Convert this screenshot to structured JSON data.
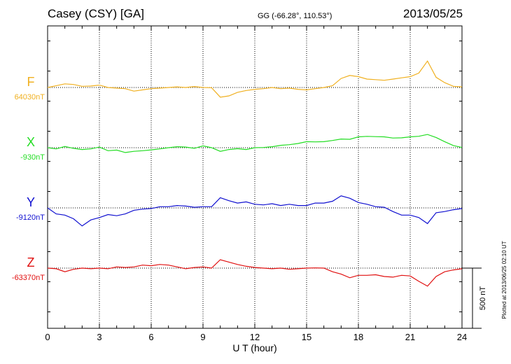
{
  "header": {
    "station": "Casey (CSY)  [GA]",
    "coords": "GG (-66.28°, 110.53°)",
    "date": "2013/05/25"
  },
  "plotted_note": "Plotted at 2013/06/25 02:10 UT",
  "scale_bar_label": "500 nT",
  "colors": {
    "F": "#f0b020",
    "X": "#22dd22",
    "Y": "#1010d0",
    "Z": "#e01010"
  },
  "chart_data": {
    "type": "line",
    "title": "Casey (CSY)  [GA]",
    "xlabel": "U T (hour)",
    "ylabel": "",
    "xlim": [
      0,
      24
    ],
    "x_ticks": [
      "0",
      "3",
      "6",
      "9",
      "12",
      "15",
      "18",
      "21",
      "24"
    ],
    "grid": true,
    "scale_nT": 500,
    "x": [
      0,
      0.5,
      1,
      1.5,
      2,
      2.5,
      3,
      3.5,
      4,
      4.5,
      5,
      5.5,
      6,
      6.5,
      7,
      7.5,
      8,
      8.5,
      9,
      9.5,
      10,
      10.5,
      11,
      11.5,
      12,
      12.5,
      13,
      13.5,
      14,
      14.5,
      15,
      15.5,
      16,
      16.5,
      17,
      17.5,
      18,
      18.5,
      19,
      19.5,
      20,
      20.5,
      21,
      21.5,
      22,
      22.5,
      23,
      23.5,
      24
    ],
    "series": [
      {
        "name": "F",
        "baseline_label": "64030nT",
        "values": [
          64030,
          64045,
          64060,
          64055,
          64040,
          64042,
          64050,
          64030,
          64025,
          64020,
          64000,
          64010,
          64020,
          64025,
          64030,
          64035,
          64030,
          64038,
          64030,
          64028,
          63950,
          63960,
          63990,
          64005,
          64015,
          64020,
          64030,
          64020,
          64025,
          64015,
          64010,
          64020,
          64030,
          64045,
          64105,
          64130,
          64120,
          64100,
          64095,
          64090,
          64100,
          64110,
          64120,
          64150,
          64250,
          64115,
          64070,
          64040,
          64035
        ]
      },
      {
        "name": "X",
        "baseline_label": "-930nT",
        "values": [
          -930,
          -940,
          -920,
          -935,
          -945,
          -940,
          -925,
          -955,
          -950,
          -970,
          -960,
          -955,
          -948,
          -940,
          -930,
          -922,
          -925,
          -935,
          -915,
          -930,
          -960,
          -945,
          -938,
          -945,
          -930,
          -928,
          -922,
          -910,
          -905,
          -895,
          -880,
          -882,
          -880,
          -870,
          -858,
          -860,
          -840,
          -836,
          -838,
          -840,
          -850,
          -848,
          -840,
          -835,
          -820,
          -845,
          -880,
          -912,
          -928
        ]
      },
      {
        "name": "Y",
        "baseline_label": "-9120nT",
        "values": [
          -9120,
          -9170,
          -9180,
          -9210,
          -9270,
          -9220,
          -9200,
          -9175,
          -9185,
          -9170,
          -9140,
          -9130,
          -9125,
          -9110,
          -9110,
          -9100,
          -9105,
          -9115,
          -9110,
          -9110,
          -9035,
          -9060,
          -9080,
          -9070,
          -9090,
          -9095,
          -9085,
          -9100,
          -9090,
          -9100,
          -9100,
          -9080,
          -9080,
          -9065,
          -9020,
          -9040,
          -9075,
          -9090,
          -9110,
          -9115,
          -9150,
          -9180,
          -9180,
          -9200,
          -9250,
          -9160,
          -9150,
          -9135,
          -9125
        ]
      },
      {
        "name": "Z",
        "baseline_label": "-63370nT",
        "values": [
          -63370,
          -63375,
          -63400,
          -63380,
          -63370,
          -63375,
          -63370,
          -63375,
          -63360,
          -63365,
          -63360,
          -63345,
          -63350,
          -63340,
          -63345,
          -63360,
          -63375,
          -63365,
          -63360,
          -63370,
          -63300,
          -63320,
          -63340,
          -63355,
          -63365,
          -63370,
          -63375,
          -63370,
          -63380,
          -63375,
          -63370,
          -63368,
          -63370,
          -63400,
          -63420,
          -63450,
          -63430,
          -63430,
          -63425,
          -63440,
          -63445,
          -63430,
          -63435,
          -63480,
          -63520,
          -63440,
          -63400,
          -63385,
          -63375
        ]
      }
    ]
  }
}
